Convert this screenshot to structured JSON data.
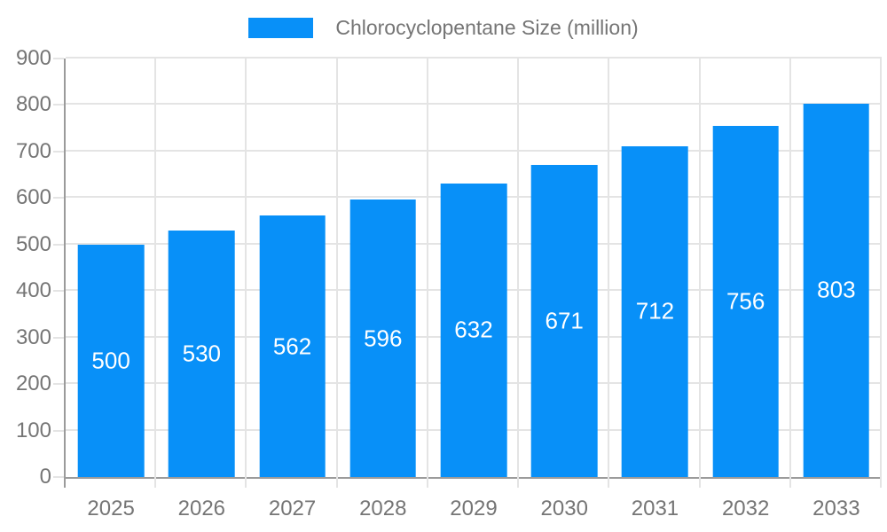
{
  "chart_data": {
    "type": "bar",
    "title": "",
    "legend": "Chlorocyclopentane Size (million)",
    "legend_position": "top",
    "categories": [
      "2025",
      "2026",
      "2027",
      "2028",
      "2029",
      "2030",
      "2031",
      "2032",
      "2033"
    ],
    "series": [
      {
        "name": "Chlorocyclopentane Size (million)",
        "values": [
          500,
          530,
          562,
          596,
          632,
          671,
          712,
          756,
          803
        ]
      }
    ],
    "bar_labels": [
      "500",
      "530",
      "562",
      "596",
      "632",
      "671",
      "712",
      "756",
      "803"
    ],
    "xlabel": "",
    "ylabel": "",
    "ylim": [
      0,
      900
    ],
    "y_ticks": [
      0,
      100,
      200,
      300,
      400,
      500,
      600,
      700,
      800,
      900
    ],
    "grid": true,
    "colors": {
      "bar": "#0890f8",
      "bar_label_text": "#ffffff",
      "grid": "#e4e4e4",
      "axis": "#9b9b9b",
      "label_text": "#757575"
    }
  }
}
